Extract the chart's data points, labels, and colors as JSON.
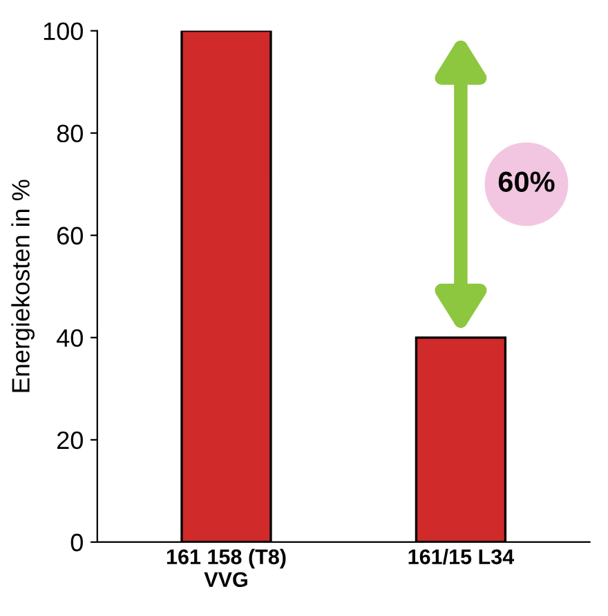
{
  "chart_data": {
    "type": "bar",
    "ylabel": "Energiekosten in %",
    "categories": [
      "161 158 (T8)\nVVG",
      "161/15 L34"
    ],
    "values": [
      100,
      40
    ],
    "color": "#d02a2a",
    "ylim": [
      0,
      100
    ],
    "yticks": [
      0,
      20,
      40,
      60,
      80,
      100
    ],
    "grid": false,
    "annotations": [
      "60%"
    ]
  }
}
